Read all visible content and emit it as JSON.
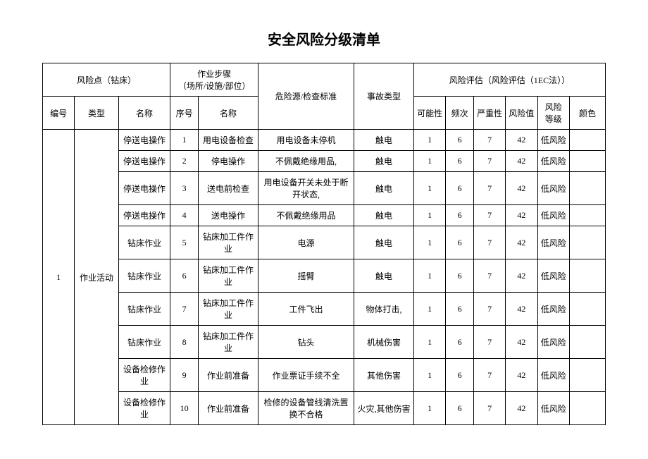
{
  "title": "安全风险分级清单",
  "headers": {
    "riskPoint": "风险点（钻床）",
    "steps": "作业步骤\n（场所/设施/部位）",
    "hazard": "危险源/检查标准",
    "accident": "事故类型",
    "evaluation": "风险评估（风险评估（1EC法））",
    "num": "编号",
    "type": "类型",
    "name": "名称",
    "seq": "序号",
    "stepName": "名称",
    "poss": "可能性",
    "freq": "频次",
    "sev": "严重性",
    "val": "风险值",
    "level": "风险\n等级",
    "color": "颜色"
  },
  "groupNum": "1",
  "groupType": "作业活动",
  "rows": [
    {
      "name": "停送电操作",
      "seq": "1",
      "step": "用电设备检查",
      "hazard": "用电设备未停机",
      "accident": "触电",
      "poss": "1",
      "freq": "6",
      "sev": "7",
      "val": "42",
      "level": "低风险"
    },
    {
      "name": "停送电操作",
      "seq": "2",
      "step": "停电操作",
      "hazard": "不佩戴绝缘用品,",
      "accident": "触电",
      "poss": "1",
      "freq": "6",
      "sev": "7",
      "val": "42",
      "level": "低风险"
    },
    {
      "name": "停送电操作",
      "seq": "3",
      "step": "送电前检查",
      "hazard": "用电设备开关未处于断开状态,",
      "accident": "触电",
      "poss": "1",
      "freq": "6",
      "sev": "7",
      "val": "42",
      "level": "低风险"
    },
    {
      "name": "停送电操作",
      "seq": "4",
      "step": "送电操作",
      "hazard": "不佩戴绝缘用品",
      "accident": "触电",
      "poss": "1",
      "freq": "6",
      "sev": "7",
      "val": "42",
      "level": "低风险"
    },
    {
      "name": "钻床作业",
      "seq": "5",
      "step": "钻床加工件作业",
      "hazard": "电源",
      "accident": "触电",
      "poss": "1",
      "freq": "6",
      "sev": "7",
      "val": "42",
      "level": "低风险"
    },
    {
      "name": "钻床作业",
      "seq": "6",
      "step": "钻床加工件作业",
      "hazard": "摇臂",
      "accident": "触电",
      "poss": "1",
      "freq": "6",
      "sev": "7",
      "val": "42",
      "level": "低风险"
    },
    {
      "name": "钻床作业",
      "seq": "7",
      "step": "钻床加工件作业",
      "hazard": "工件飞出",
      "accident": "物体打击,",
      "poss": "1",
      "freq": "6",
      "sev": "7",
      "val": "42",
      "level": "低风险"
    },
    {
      "name": "钻床作业",
      "seq": "8",
      "step": "钻床加工件作业",
      "hazard": "钻头",
      "accident": "机械伤害",
      "poss": "1",
      "freq": "6",
      "sev": "7",
      "val": "42",
      "level": "低风险"
    },
    {
      "name": "设备检修作业",
      "seq": "9",
      "step": "作业前准备",
      "hazard": "作业票证手续不全",
      "accident": "其他伤害",
      "poss": "1",
      "freq": "6",
      "sev": "7",
      "val": "42",
      "level": "低风险"
    },
    {
      "name": "设备检修作业",
      "seq": "10",
      "step": "作业前准备",
      "hazard": "检修的设备管线清洗置换不合格",
      "accident": "火灾,其他伤害",
      "poss": "1",
      "freq": "6",
      "sev": "7",
      "val": "42",
      "level": "低风险"
    }
  ]
}
